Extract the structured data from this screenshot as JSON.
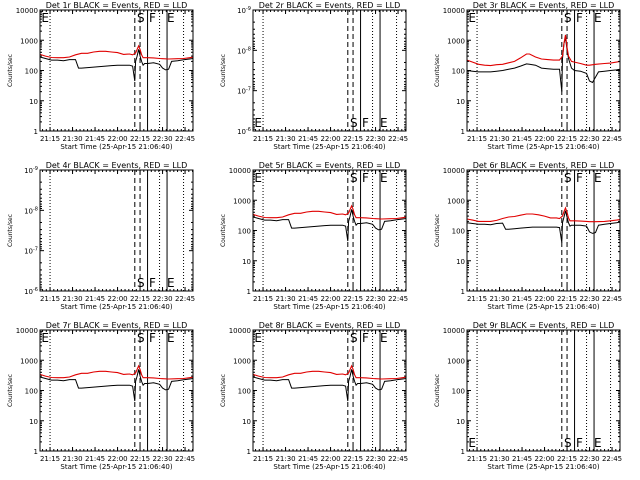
{
  "colors": {
    "events": "#000000",
    "lld": "#e00000",
    "axes": "#000000",
    "background": "#ffffff"
  },
  "y_axis_label": "Counts/sec",
  "x_axis_label": "Start Time (25-Apr-15 21:06:40)",
  "x_tick_labels": [
    "21:15",
    "21:30",
    "21:45",
    "22:00",
    "22:15",
    "22:30",
    "22:45"
  ],
  "x_tick_values_min": [
    15,
    30,
    45,
    60,
    75,
    90,
    105
  ],
  "x_range_min": [
    8.3,
    110.3
  ],
  "markers": {
    "dotted_min": [
      15,
      88,
      104
    ],
    "dashed_min": [
      71.5,
      75
    ],
    "solid_min": [
      80,
      93
    ],
    "letters": [
      {
        "text": "S",
        "x_min": 73
      },
      {
        "text": "F",
        "x_min": 81
      },
      {
        "text": "E",
        "x_min": 93
      }
    ]
  },
  "chart_data": [
    {
      "type": "line",
      "title": "Det 1r BLACK = Events, RED = LLD",
      "scale": "log",
      "ylim": [
        1,
        10000
      ],
      "y_tick_labels": [
        "1",
        "10",
        "100",
        "1000",
        "10000"
      ],
      "has_data": true,
      "extra_letters": [
        {
          "text": "E",
          "x_min": 9.2
        }
      ],
      "series": [
        {
          "name": "Events",
          "x": [
            8.3,
            12,
            16,
            20,
            24,
            28,
            32,
            34,
            36,
            40,
            44,
            48,
            52,
            56,
            60,
            64,
            68,
            70,
            71.5,
            72,
            73,
            74,
            75,
            76,
            77,
            78,
            80,
            84,
            88,
            90,
            92,
            94,
            96,
            100,
            104,
            108,
            110.3
          ],
          "y": [
            280,
            250,
            220,
            220,
            210,
            230,
            230,
            120,
            120,
            125,
            130,
            135,
            140,
            145,
            150,
            150,
            150,
            140,
            45,
            200,
            300,
            500,
            300,
            200,
            150,
            170,
            170,
            180,
            160,
            120,
            105,
            110,
            200,
            210,
            225,
            240,
            250
          ]
        },
        {
          "name": "LLD",
          "x": [
            8.3,
            12,
            16,
            20,
            24,
            28,
            32,
            36,
            40,
            44,
            48,
            52,
            56,
            60,
            64,
            68,
            70,
            72,
            73,
            74,
            75,
            76,
            77,
            80,
            84,
            88,
            90,
            94,
            100,
            104,
            108,
            110.3
          ],
          "y": [
            340,
            300,
            270,
            265,
            265,
            280,
            330,
            370,
            370,
            410,
            430,
            430,
            410,
            390,
            340,
            350,
            330,
            380,
            500,
            650,
            500,
            330,
            265,
            265,
            260,
            250,
            245,
            240,
            245,
            250,
            265,
            275
          ]
        }
      ]
    },
    {
      "type": "line",
      "title": "Det 2r BLACK = Events, RED = LLD",
      "scale": "log",
      "ylim": [
        1e-06,
        1e-09
      ],
      "y_tick_labels": [
        "10^-6",
        "10^-7",
        "10^-8",
        "10^-9"
      ],
      "has_data": false,
      "extra_letters": [
        {
          "text": "E",
          "x_min": 9.2
        }
      ],
      "series": []
    },
    {
      "type": "line",
      "title": "Det 3r BLACK = Events, RED = LLD",
      "scale": "log",
      "ylim": [
        1,
        10000
      ],
      "y_tick_labels": [
        "1",
        "10",
        "100",
        "1000",
        "10000"
      ],
      "has_data": true,
      "extra_letters": [
        {
          "text": "E",
          "x_min": 9.2
        }
      ],
      "series": [
        {
          "name": "Events",
          "x": [
            8.3,
            12,
            16,
            20,
            24,
            28,
            32,
            36,
            40,
            44,
            48,
            50,
            54,
            58,
            62,
            66,
            70,
            71.5,
            72,
            73,
            74,
            75,
            76,
            78,
            80,
            84,
            88,
            90,
            92,
            96,
            100,
            104,
            108,
            110.3
          ],
          "y": [
            100,
            95,
            90,
            90,
            90,
            95,
            100,
            110,
            120,
            140,
            165,
            160,
            150,
            120,
            115,
            110,
            110,
            20,
            250,
            800,
            1200,
            500,
            250,
            120,
            100,
            95,
            80,
            45,
            40,
            90,
            95,
            100,
            105,
            110
          ]
        },
        {
          "name": "LLD",
          "x": [
            8.3,
            12,
            16,
            20,
            24,
            28,
            32,
            36,
            40,
            44,
            48,
            50,
            54,
            58,
            62,
            66,
            70,
            72,
            73,
            74,
            75,
            76,
            78,
            80,
            84,
            88,
            90,
            94,
            100,
            104,
            108,
            110.3
          ],
          "y": [
            220,
            190,
            160,
            150,
            145,
            155,
            160,
            180,
            200,
            260,
            350,
            350,
            280,
            240,
            230,
            220,
            220,
            300,
            800,
            1500,
            600,
            300,
            200,
            190,
            170,
            150,
            150,
            160,
            170,
            175,
            190,
            200
          ]
        }
      ]
    },
    {
      "type": "line",
      "title": "Det 4r BLACK = Events, RED = LLD",
      "scale": "log",
      "ylim": [
        1e-06,
        1e-09
      ],
      "y_tick_labels": [
        "10^-6",
        "10^-7",
        "10^-8",
        "10^-9"
      ],
      "has_data": false,
      "extra_letters": [],
      "series": []
    },
    {
      "type": "line",
      "title": "Det 5r BLACK = Events, RED = LLD",
      "scale": "log",
      "ylim": [
        1,
        10000
      ],
      "y_tick_labels": [
        "1",
        "10",
        "100",
        "1000",
        "10000"
      ],
      "has_data": true,
      "extra_letters": [
        {
          "text": "E",
          "x_min": 9.2
        }
      ],
      "series": [
        {
          "name": "Events",
          "x": [
            8.3,
            12,
            16,
            20,
            24,
            28,
            32,
            34,
            36,
            40,
            44,
            48,
            52,
            56,
            60,
            64,
            68,
            70,
            71.5,
            72,
            73,
            74,
            75,
            76,
            77,
            78,
            80,
            84,
            88,
            90,
            92,
            94,
            96,
            100,
            104,
            108,
            110.3
          ],
          "y": [
            280,
            250,
            220,
            220,
            210,
            230,
            230,
            120,
            120,
            125,
            130,
            135,
            140,
            145,
            150,
            150,
            150,
            140,
            45,
            200,
            300,
            500,
            300,
            200,
            150,
            170,
            170,
            180,
            160,
            120,
            105,
            110,
            200,
            210,
            225,
            240,
            250
          ]
        },
        {
          "name": "LLD",
          "x": [
            8.3,
            12,
            16,
            20,
            24,
            28,
            32,
            36,
            40,
            44,
            48,
            52,
            56,
            60,
            64,
            68,
            70,
            72,
            73,
            74,
            75,
            76,
            77,
            80,
            84,
            88,
            90,
            94,
            100,
            104,
            108,
            110.3
          ],
          "y": [
            340,
            300,
            270,
            265,
            265,
            280,
            330,
            370,
            370,
            410,
            430,
            430,
            410,
            390,
            340,
            350,
            330,
            380,
            500,
            650,
            500,
            330,
            265,
            265,
            260,
            250,
            245,
            240,
            245,
            250,
            265,
            275
          ]
        }
      ]
    },
    {
      "type": "line",
      "title": "Det 6r BLACK = Events, RED = LLD",
      "scale": "log",
      "ylim": [
        1,
        10000
      ],
      "y_tick_labels": [
        "1",
        "10",
        "100",
        "1000",
        "10000"
      ],
      "has_data": true,
      "extra_letters": [],
      "series": [
        {
          "name": "Events",
          "x": [
            8.3,
            12,
            16,
            20,
            24,
            28,
            32,
            34,
            36,
            40,
            44,
            48,
            52,
            56,
            60,
            64,
            68,
            70,
            71.5,
            72,
            73,
            74,
            75,
            76,
            77,
            78,
            80,
            84,
            88,
            90,
            92,
            94,
            96,
            100,
            104,
            108,
            110.3
          ],
          "y": [
            180,
            170,
            160,
            160,
            155,
            170,
            175,
            110,
            110,
            115,
            120,
            125,
            130,
            130,
            130,
            130,
            130,
            125,
            40,
            180,
            280,
            450,
            280,
            180,
            140,
            150,
            150,
            150,
            140,
            90,
            80,
            85,
            150,
            160,
            170,
            180,
            190
          ]
        },
        {
          "name": "LLD",
          "x": [
            8.3,
            12,
            16,
            20,
            24,
            28,
            32,
            36,
            40,
            44,
            48,
            52,
            56,
            60,
            64,
            68,
            70,
            72,
            73,
            74,
            75,
            76,
            77,
            80,
            84,
            88,
            90,
            94,
            100,
            104,
            108,
            110.3
          ],
          "y": [
            240,
            220,
            200,
            200,
            200,
            215,
            250,
            280,
            290,
            320,
            350,
            350,
            330,
            300,
            260,
            260,
            250,
            300,
            420,
            560,
            400,
            260,
            210,
            210,
            205,
            200,
            195,
            195,
            200,
            210,
            220,
            230
          ]
        }
      ]
    },
    {
      "type": "line",
      "title": "Det 7r BLACK = Events, RED = LLD",
      "scale": "log",
      "ylim": [
        1,
        10000
      ],
      "y_tick_labels": [
        "1",
        "10",
        "100",
        "1000",
        "10000"
      ],
      "has_data": true,
      "extra_letters": [
        {
          "text": "E",
          "x_min": 9.2
        }
      ],
      "series": [
        {
          "name": "Events",
          "x": [
            8.3,
            12,
            16,
            20,
            24,
            28,
            32,
            34,
            36,
            40,
            44,
            48,
            52,
            56,
            60,
            64,
            68,
            70,
            71.5,
            72,
            73,
            74,
            75,
            76,
            77,
            78,
            80,
            84,
            88,
            90,
            92,
            94,
            96,
            100,
            104,
            108,
            110.3
          ],
          "y": [
            280,
            250,
            220,
            220,
            210,
            230,
            230,
            120,
            120,
            125,
            130,
            135,
            140,
            145,
            150,
            150,
            150,
            140,
            45,
            200,
            300,
            500,
            300,
            200,
            150,
            170,
            170,
            180,
            160,
            120,
            105,
            110,
            200,
            210,
            225,
            240,
            250
          ]
        },
        {
          "name": "LLD",
          "x": [
            8.3,
            12,
            16,
            20,
            24,
            28,
            32,
            36,
            40,
            44,
            48,
            52,
            56,
            60,
            64,
            68,
            70,
            72,
            73,
            74,
            75,
            76,
            77,
            80,
            84,
            88,
            90,
            94,
            100,
            104,
            108,
            110.3
          ],
          "y": [
            340,
            300,
            270,
            265,
            265,
            280,
            330,
            370,
            370,
            410,
            430,
            430,
            410,
            390,
            340,
            350,
            330,
            380,
            500,
            650,
            500,
            330,
            265,
            265,
            260,
            250,
            245,
            240,
            245,
            250,
            265,
            275
          ]
        }
      ]
    },
    {
      "type": "line",
      "title": "Det 8r BLACK = Events, RED = LLD",
      "scale": "log",
      "ylim": [
        1,
        10000
      ],
      "y_tick_labels": [
        "1",
        "10",
        "100",
        "1000",
        "10000"
      ],
      "has_data": true,
      "extra_letters": [
        {
          "text": "E",
          "x_min": 9.2
        }
      ],
      "series": [
        {
          "name": "Events",
          "x": [
            8.3,
            12,
            16,
            20,
            24,
            28,
            32,
            34,
            36,
            40,
            44,
            48,
            52,
            56,
            60,
            64,
            68,
            70,
            71.5,
            72,
            73,
            74,
            75,
            76,
            77,
            78,
            80,
            84,
            88,
            90,
            92,
            94,
            96,
            100,
            104,
            108,
            110.3
          ],
          "y": [
            280,
            250,
            220,
            220,
            210,
            230,
            230,
            120,
            120,
            125,
            130,
            135,
            140,
            145,
            150,
            150,
            150,
            140,
            45,
            200,
            300,
            500,
            300,
            200,
            150,
            170,
            170,
            180,
            160,
            120,
            105,
            110,
            200,
            210,
            225,
            240,
            250
          ]
        },
        {
          "name": "LLD",
          "x": [
            8.3,
            12,
            16,
            20,
            24,
            28,
            32,
            36,
            40,
            44,
            48,
            52,
            56,
            60,
            64,
            68,
            70,
            72,
            73,
            74,
            75,
            76,
            77,
            80,
            84,
            88,
            90,
            94,
            100,
            104,
            108,
            110.3
          ],
          "y": [
            340,
            300,
            270,
            265,
            265,
            280,
            330,
            370,
            370,
            410,
            430,
            430,
            410,
            390,
            340,
            350,
            330,
            380,
            500,
            650,
            500,
            330,
            265,
            265,
            260,
            250,
            245,
            240,
            245,
            250,
            265,
            275
          ]
        }
      ]
    },
    {
      "type": "line",
      "title": "Det 9r BLACK = Events, RED = LLD",
      "scale": "log",
      "ylim": [
        1,
        10000
      ],
      "y_tick_labels": [
        "1",
        "10",
        "100",
        "1000",
        "10000"
      ],
      "has_data": false,
      "extra_letters": [
        {
          "text": "E",
          "x_min": 9.2
        }
      ],
      "series": []
    }
  ]
}
